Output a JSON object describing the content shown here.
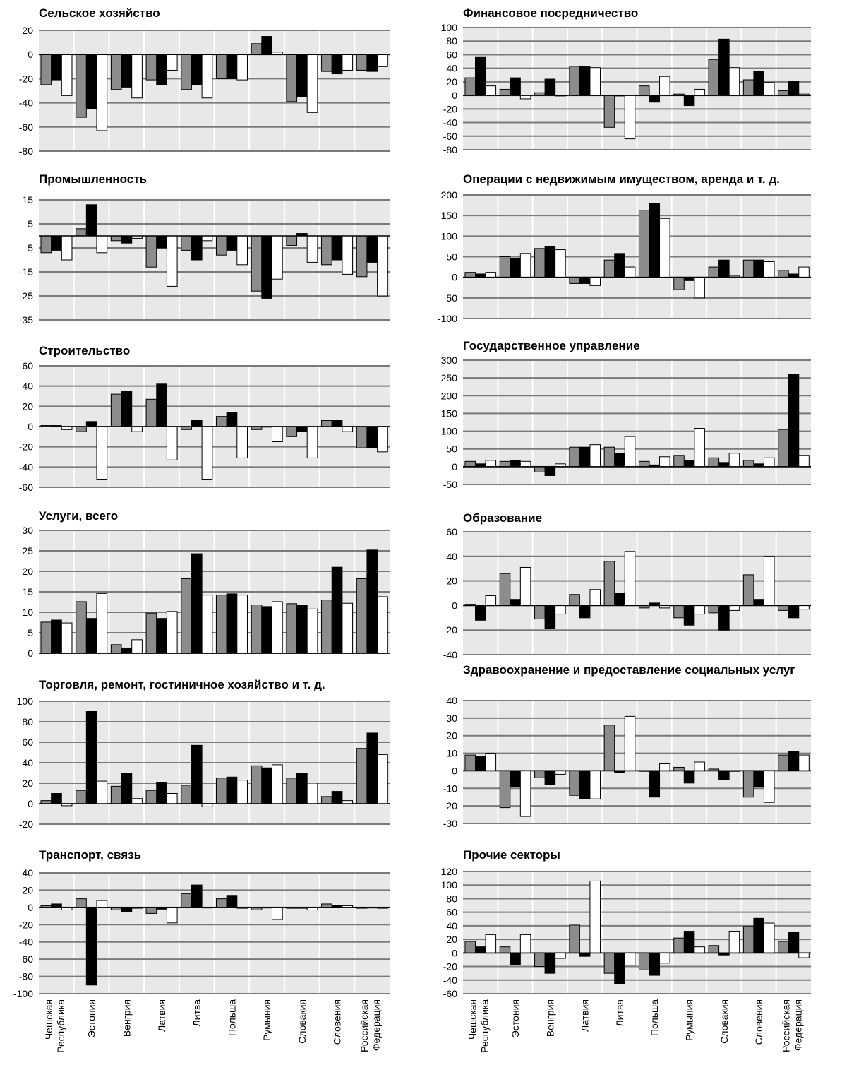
{
  "categories": [
    [
      "Чешская",
      "Республика"
    ],
    [
      "Эстония"
    ],
    [
      "Венгрия"
    ],
    [
      "Латвия"
    ],
    [
      "Литва"
    ],
    [
      "Польша"
    ],
    [
      "Румыния"
    ],
    [
      "Словакия"
    ],
    [
      "Словения"
    ],
    [
      "Российская",
      "Федерация"
    ]
  ],
  "colors": {
    "series1": "#8c8c8c",
    "series2": "#000000",
    "series3": "#ffffff",
    "plot_bg": "#e8e8e8",
    "grid": "#7a7a7a"
  },
  "chart_data": [
    {
      "type": "bar",
      "title": "Сельское хозяйство",
      "ylim": [
        -80,
        20
      ],
      "yticks": [
        20,
        0,
        -20,
        -40,
        -60,
        -80
      ],
      "series": [
        {
          "values": [
            -25,
            -52,
            -29,
            -21,
            -29,
            -20,
            9,
            -39,
            -14,
            -13
          ]
        },
        {
          "values": [
            -21,
            -45,
            -27,
            -25,
            -25,
            -20,
            15,
            -35,
            -16,
            -14
          ]
        },
        {
          "values": [
            -34,
            -63,
            -36,
            -13,
            -36,
            -21,
            2,
            -48,
            -13,
            -10
          ]
        }
      ]
    },
    {
      "type": "bar",
      "title": "Финансовое посредничество",
      "ylim": [
        -80,
        100
      ],
      "yticks": [
        100,
        80,
        60,
        40,
        20,
        0,
        -20,
        -40,
        -60,
        -80
      ],
      "series": [
        {
          "values": [
            26,
            9,
            4,
            43,
            -47,
            14,
            2,
            53,
            23,
            7
          ]
        },
        {
          "values": [
            56,
            26,
            24,
            43,
            0,
            -10,
            -15,
            83,
            36,
            21
          ]
        },
        {
          "values": [
            14,
            -5,
            0,
            41,
            -64,
            28,
            9,
            41,
            19,
            2
          ]
        }
      ]
    },
    {
      "type": "bar",
      "title": "Промышленность",
      "ylim": [
        -35,
        15
      ],
      "yticks": [
        15,
        5,
        -5,
        -15,
        -25,
        -35
      ],
      "series": [
        {
          "values": [
            -7,
            3,
            -2,
            -13,
            -6,
            -8,
            -23,
            -4,
            -12,
            -17
          ]
        },
        {
          "values": [
            -6,
            13,
            -3,
            -5,
            -10,
            -6,
            -26,
            1,
            -10,
            -11
          ]
        },
        {
          "values": [
            -10,
            -7,
            -1,
            -21,
            -2,
            -12,
            -18,
            -11,
            -16,
            -25
          ]
        }
      ]
    },
    {
      "type": "bar",
      "title": "Операции с недвижимым имуществом, аренда и т. д.",
      "ylim": [
        -100,
        200
      ],
      "yticks": [
        200,
        150,
        100,
        50,
        0,
        -50,
        -100
      ],
      "series": [
        {
          "values": [
            12,
            50,
            70,
            -15,
            42,
            163,
            -30,
            25,
            42,
            17
          ]
        },
        {
          "values": [
            8,
            45,
            75,
            -15,
            58,
            180,
            -8,
            42,
            42,
            8
          ]
        },
        {
          "values": [
            12,
            58,
            67,
            -20,
            25,
            143,
            -50,
            3,
            38,
            25
          ]
        }
      ]
    },
    {
      "type": "bar",
      "title": "Строительство",
      "ylim": [
        -60,
        60
      ],
      "yticks": [
        60,
        40,
        20,
        0,
        -20,
        -40,
        -60
      ],
      "series": [
        {
          "values": [
            1,
            -5,
            32,
            27,
            -3,
            10,
            -3,
            -10,
            6,
            -21
          ]
        },
        {
          "values": [
            1,
            5,
            35,
            42,
            6,
            14,
            0,
            -5,
            6,
            -21
          ]
        },
        {
          "values": [
            -3,
            -52,
            -5,
            -33,
            -52,
            -31,
            -15,
            -31,
            -5,
            -25
          ]
        }
      ]
    },
    {
      "type": "bar",
      "title": "Государственное управление",
      "ylim": [
        -50,
        300
      ],
      "yticks": [
        300,
        250,
        200,
        150,
        100,
        50,
        0,
        -50
      ],
      "series": [
        {
          "values": [
            15,
            15,
            -15,
            55,
            55,
            15,
            32,
            25,
            18,
            105
          ]
        },
        {
          "values": [
            8,
            18,
            -25,
            55,
            38,
            5,
            18,
            12,
            8,
            260
          ]
        },
        {
          "values": [
            18,
            15,
            8,
            62,
            85,
            28,
            108,
            38,
            25,
            32
          ]
        }
      ]
    },
    {
      "type": "bar",
      "title": "Услуги, всего",
      "ylim": [
        0,
        30
      ],
      "yticks": [
        30,
        25,
        20,
        15,
        10,
        5,
        0
      ],
      "series": [
        {
          "values": [
            7.6,
            12.6,
            2.1,
            9.8,
            18.2,
            14.2,
            11.8,
            12.1,
            13,
            18.2
          ]
        },
        {
          "values": [
            8.1,
            8.5,
            1.3,
            8.5,
            24.3,
            14.5,
            11.4,
            11.8,
            21,
            25.2
          ]
        },
        {
          "values": [
            7.4,
            14.6,
            3.3,
            10.2,
            14.2,
            14.2,
            12.6,
            10.8,
            12.2,
            13.8
          ]
        }
      ]
    },
    {
      "type": "bar",
      "title": "Образование",
      "ylim": [
        -40,
        60
      ],
      "yticks": [
        60,
        40,
        20,
        0,
        -20,
        -40
      ],
      "series": [
        {
          "values": [
            1,
            26,
            -11,
            9,
            36,
            -2,
            -10,
            -6,
            25,
            -4
          ]
        },
        {
          "values": [
            -12,
            5,
            -19,
            -10,
            10,
            2,
            -16,
            -20,
            5,
            -10
          ]
        },
        {
          "values": [
            8,
            31,
            -7,
            13,
            44,
            -2,
            -7,
            -4,
            40,
            -3
          ]
        }
      ]
    },
    {
      "type": "bar",
      "title": "Торговля, ремонт, гостиничное хозяйство и т. д.",
      "ylim": [
        -20,
        100
      ],
      "yticks": [
        100,
        80,
        60,
        40,
        20,
        0,
        -20
      ],
      "series": [
        {
          "values": [
            3,
            13,
            17,
            13,
            18,
            25,
            37,
            25,
            7,
            54
          ]
        },
        {
          "values": [
            10,
            90,
            30,
            21,
            57,
            26,
            35,
            30,
            12,
            69
          ]
        },
        {
          "values": [
            -2,
            22,
            5,
            10,
            -3,
            23,
            38,
            20,
            3,
            48
          ]
        }
      ]
    },
    {
      "type": "bar",
      "title": "Здравоохранение и предоставление социальных услуг",
      "ylim": [
        -30,
        40
      ],
      "yticks": [
        40,
        30,
        20,
        10,
        0,
        -10,
        -20,
        -30
      ],
      "series": [
        {
          "values": [
            9,
            -21,
            -4,
            -14,
            26,
            0,
            2,
            1,
            -15,
            9
          ]
        },
        {
          "values": [
            8,
            -9,
            -8,
            -16,
            -1,
            -15,
            -7,
            -5,
            -9,
            11
          ]
        },
        {
          "values": [
            10,
            -26,
            -2,
            -16,
            31,
            4,
            5,
            0,
            -18,
            9
          ]
        }
      ]
    },
    {
      "type": "bar",
      "title": "Транспорт, связь",
      "ylim": [
        -100,
        40
      ],
      "yticks": [
        40,
        20,
        0,
        -20,
        -40,
        -60,
        -80,
        -100
      ],
      "series": [
        {
          "values": [
            2,
            10,
            -3,
            -7,
            16,
            10,
            -3,
            -1,
            4,
            -1
          ]
        },
        {
          "values": [
            4,
            -90,
            -5,
            -2,
            26,
            14,
            0,
            -1,
            2,
            0
          ]
        },
        {
          "values": [
            -3,
            8,
            -1,
            -18,
            0,
            -1,
            -14,
            -3,
            2,
            -1
          ]
        }
      ]
    },
    {
      "type": "bar",
      "title": "Прочие секторы",
      "ylim": [
        -60,
        120
      ],
      "yticks": [
        120,
        100,
        80,
        60,
        40,
        20,
        0,
        -20,
        -40,
        -60
      ],
      "series": [
        {
          "values": [
            17,
            9,
            -20,
            41,
            -30,
            -25,
            22,
            11,
            39,
            17
          ]
        },
        {
          "values": [
            9,
            -17,
            -30,
            -5,
            -45,
            -33,
            32,
            -3,
            51,
            30
          ]
        },
        {
          "values": [
            27,
            27,
            -8,
            106,
            -18,
            -15,
            9,
            32,
            44,
            -7
          ]
        }
      ]
    }
  ]
}
